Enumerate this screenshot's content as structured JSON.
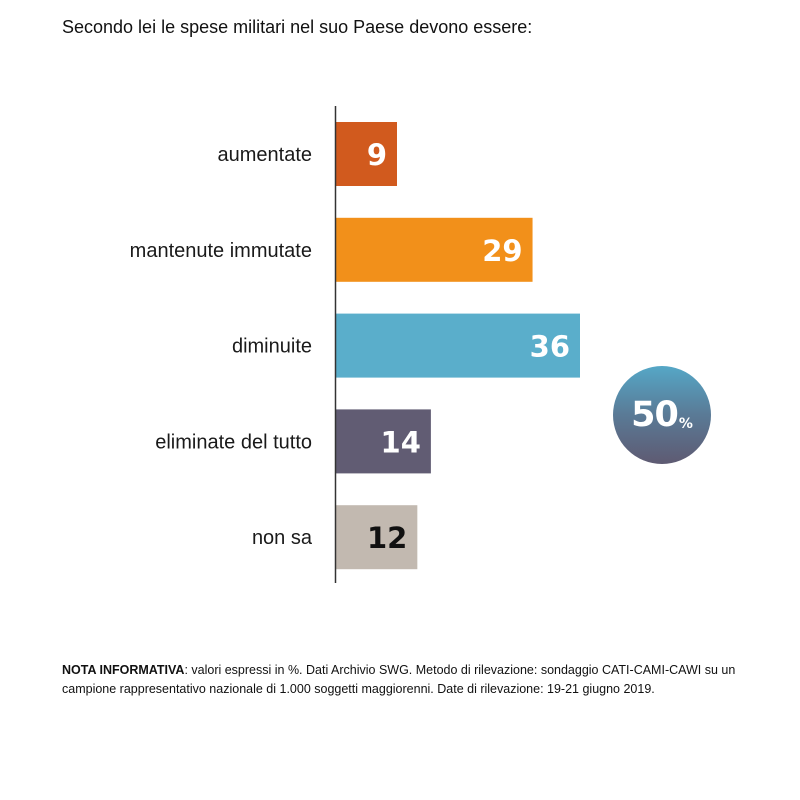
{
  "title": "Secondo lei le spese militari nel suo Paese devono essere:",
  "badge": {
    "value": "50",
    "unit": "%"
  },
  "note": {
    "label": "NOTA INFORMATIVA",
    "text": ": valori espressi in %. Dati Archivio SWG. Metodo di rilevazione: sondaggio CATI-CAMI-CAWI su un campione rappresentativo nazionale di 1.000 soggetti maggiorenni. Date di rilevazione: 19-21 giugno 2019."
  },
  "chart_data": {
    "type": "bar",
    "orientation": "horizontal",
    "title": "Secondo lei le spese militari nel suo Paese devono essere:",
    "categories": [
      "aumentate",
      "mantenute immutate",
      "diminuite",
      "eliminate del tutto",
      "non sa"
    ],
    "values": [
      9,
      29,
      36,
      14,
      12
    ],
    "colors": [
      "#d15a1e",
      "#f2901a",
      "#5aaecb",
      "#615c73",
      "#c2b9b0"
    ],
    "label_colors": [
      "#ffffff",
      "#ffffff",
      "#ffffff",
      "#ffffff",
      "#111111"
    ],
    "xlim": [
      0,
      36
    ],
    "grid": false,
    "legend": "none"
  }
}
